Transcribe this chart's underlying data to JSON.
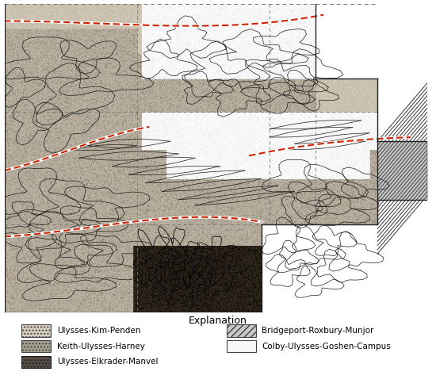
{
  "title": "Explanation",
  "title_fontsize": 9,
  "legend_items": [
    {
      "label": "Ulysses-Kim-Penden",
      "hatch": "....",
      "facecolor": "#d8d0c0",
      "edgecolor": "#444444"
    },
    {
      "label": "Keith-Ulysses-Harney",
      "hatch": "....",
      "facecolor": "#b0a898",
      "edgecolor": "#444444"
    },
    {
      "label": "Ulysses-Elkrader-Manvel",
      "hatch": "....",
      "facecolor": "#686058",
      "edgecolor": "#333333"
    },
    {
      "label": "Bridgeport-Roxbury-Munjor",
      "hatch": "////",
      "facecolor": "#c8c8c8",
      "edgecolor": "#444444"
    },
    {
      "label": "Colby-Ulysses-Goshen-Campus",
      "hatch": "",
      "facecolor": "#f8f8f8",
      "edgecolor": "#444444"
    }
  ],
  "fig_bg": "#ffffff",
  "map_border_color": "#222222",
  "dashed_grid_color": "#888888",
  "soil_line_color": "#222222",
  "road_red": "#cc2200",
  "road_white": "#ffffff",
  "ukp_color": [
    0.88,
    0.84,
    0.77
  ],
  "kuh_color": [
    0.72,
    0.68,
    0.62
  ],
  "uem_color": [
    0.42,
    0.39,
    0.35
  ],
  "brm_color": [
    0.82,
    0.82,
    0.82
  ],
  "cugc_color": [
    0.97,
    0.97,
    0.97
  ]
}
